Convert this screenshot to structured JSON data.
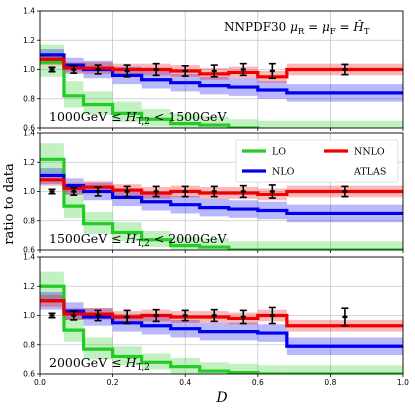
{
  "figure": {
    "ylabel": "ratio to data",
    "xlabel": "D",
    "annotation": "NNPDF30 μR = μF = ĤT"
  },
  "colors": {
    "LO": "#22cc22",
    "NLO": "#0000ee",
    "NNLO": "#ee0000",
    "ATLAS": "#000000"
  },
  "legend": {
    "entries": [
      {
        "label": "LO",
        "series": "LO"
      },
      {
        "label": "NNLO",
        "series": "NNLO"
      },
      {
        "label": "NLO",
        "series": "NLO"
      },
      {
        "label": "ATLAS",
        "series": "ATLAS"
      }
    ]
  },
  "chart_data": [
    {
      "type": "step",
      "range_label": "1000GeV ≤ HT,2 < 1500GeV",
      "xlim": [
        0.0,
        1.0
      ],
      "ylim": [
        0.6,
        1.4
      ],
      "yticks": [
        "0.6",
        "0.8",
        "1.0",
        "1.2",
        "1.4"
      ],
      "grid": true,
      "bin_edges": [
        0.0,
        0.066,
        0.12,
        0.2,
        0.28,
        0.36,
        0.44,
        0.52,
        0.6,
        0.68,
        1.0
      ],
      "series": [
        {
          "name": "LO",
          "values": [
            1.05,
            0.82,
            0.76,
            0.7,
            0.66,
            0.63,
            0.62,
            0.6,
            0.59,
            0.59
          ],
          "unc_low": [
            0.95,
            0.74,
            0.69,
            0.64,
            0.61,
            0.59,
            0.58,
            0.56,
            0.55,
            0.55
          ],
          "unc_high": [
            1.17,
            0.92,
            0.85,
            0.78,
            0.73,
            0.7,
            0.68,
            0.66,
            0.65,
            0.65
          ]
        },
        {
          "name": "NLO",
          "values": [
            1.1,
            1.03,
            1.0,
            0.96,
            0.93,
            0.91,
            0.89,
            0.88,
            0.86,
            0.84
          ],
          "unc_low": [
            1.04,
            0.97,
            0.94,
            0.9,
            0.87,
            0.85,
            0.83,
            0.82,
            0.8,
            0.78
          ],
          "unc_high": [
            1.14,
            1.08,
            1.06,
            1.02,
            0.99,
            0.97,
            0.95,
            0.94,
            0.92,
            0.9
          ]
        },
        {
          "name": "NNLO",
          "values": [
            1.07,
            1.01,
            1.01,
            1.0,
            1.0,
            0.99,
            0.97,
            0.98,
            0.95,
            1.0
          ],
          "unc_low": [
            1.03,
            0.98,
            0.97,
            0.96,
            0.96,
            0.95,
            0.93,
            0.94,
            0.91,
            0.96
          ],
          "unc_high": [
            1.1,
            1.05,
            1.05,
            1.04,
            1.04,
            1.03,
            1.01,
            1.02,
            0.99,
            1.04
          ]
        }
      ],
      "data": {
        "x": [
          0.033,
          0.093,
          0.16,
          0.24,
          0.32,
          0.4,
          0.48,
          0.56,
          0.64,
          0.84
        ],
        "y": [
          1.0,
          1.0,
          1.0,
          0.99,
          1.0,
          0.99,
          0.99,
          1.0,
          0.99,
          1.0
        ],
        "err": [
          0.015,
          0.025,
          0.03,
          0.04,
          0.04,
          0.035,
          0.04,
          0.04,
          0.05,
          0.035
        ]
      }
    },
    {
      "type": "step",
      "range_label": "1500GeV ≤ HT,2 < 2000GeV",
      "xlim": [
        0.0,
        1.0
      ],
      "ylim": [
        0.6,
        1.4
      ],
      "yticks": [
        "0.6",
        "0.8",
        "1.0",
        "1.2",
        "1.4"
      ],
      "grid": true,
      "bin_edges": [
        0.0,
        0.066,
        0.12,
        0.2,
        0.28,
        0.36,
        0.44,
        0.52,
        0.6,
        0.68,
        1.0
      ],
      "series": [
        {
          "name": "LO",
          "values": [
            1.22,
            0.9,
            0.78,
            0.72,
            0.67,
            0.63,
            0.62,
            0.6,
            0.6,
            0.6
          ],
          "unc_low": [
            1.12,
            0.82,
            0.71,
            0.66,
            0.62,
            0.59,
            0.58,
            0.56,
            0.56,
            0.56
          ],
          "unc_high": [
            1.33,
            0.99,
            0.86,
            0.79,
            0.73,
            0.69,
            0.68,
            0.66,
            0.66,
            0.66
          ]
        },
        {
          "name": "NLO",
          "values": [
            1.11,
            1.04,
            1.0,
            0.96,
            0.93,
            0.91,
            0.89,
            0.88,
            0.87,
            0.85
          ],
          "unc_low": [
            1.05,
            0.98,
            0.94,
            0.9,
            0.87,
            0.85,
            0.83,
            0.82,
            0.81,
            0.79
          ],
          "unc_high": [
            1.16,
            1.09,
            1.06,
            1.02,
            0.99,
            0.97,
            0.95,
            0.94,
            0.93,
            0.91
          ]
        },
        {
          "name": "NNLO",
          "values": [
            1.08,
            1.02,
            1.03,
            1.01,
            0.99,
            1.0,
            0.99,
            0.99,
            0.98,
            1.0
          ],
          "unc_low": [
            1.04,
            0.98,
            0.99,
            0.97,
            0.95,
            0.96,
            0.95,
            0.95,
            0.94,
            0.96
          ],
          "unc_high": [
            1.12,
            1.06,
            1.07,
            1.05,
            1.03,
            1.04,
            1.03,
            1.03,
            1.02,
            1.04
          ]
        }
      ],
      "data": {
        "x": [
          0.033,
          0.093,
          0.16,
          0.24,
          0.32,
          0.4,
          0.48,
          0.56,
          0.64,
          0.84
        ],
        "y": [
          1.0,
          1.0,
          1.0,
          1.0,
          1.0,
          1.0,
          1.0,
          1.0,
          1.0,
          1.0
        ],
        "err": [
          0.015,
          0.025,
          0.03,
          0.035,
          0.035,
          0.035,
          0.035,
          0.04,
          0.045,
          0.035
        ]
      }
    },
    {
      "type": "step",
      "range_label": "2000GeV ≤ HT,2",
      "xlim": [
        0.0,
        1.0
      ],
      "ylim": [
        0.6,
        1.4
      ],
      "yticks": [
        "0.6",
        "0.8",
        "1.0",
        "1.2",
        "1.4"
      ],
      "grid": true,
      "bin_edges": [
        0.0,
        0.066,
        0.12,
        0.2,
        0.28,
        0.36,
        0.44,
        0.52,
        0.6,
        0.68,
        1.0
      ],
      "series": [
        {
          "name": "LO",
          "values": [
            1.2,
            0.9,
            0.77,
            0.72,
            0.68,
            0.65,
            0.62,
            0.61,
            0.6,
            0.6
          ],
          "unc_low": [
            1.1,
            0.82,
            0.7,
            0.66,
            0.63,
            0.6,
            0.58,
            0.57,
            0.56,
            0.56
          ],
          "unc_high": [
            1.3,
            0.99,
            0.85,
            0.79,
            0.74,
            0.71,
            0.68,
            0.67,
            0.66,
            0.66
          ]
        },
        {
          "name": "NLO",
          "values": [
            1.1,
            1.03,
            0.99,
            0.95,
            0.93,
            0.91,
            0.89,
            0.89,
            0.88,
            0.79
          ],
          "unc_low": [
            1.04,
            0.97,
            0.93,
            0.89,
            0.87,
            0.85,
            0.83,
            0.83,
            0.82,
            0.73
          ],
          "unc_high": [
            1.16,
            1.09,
            1.05,
            1.01,
            0.99,
            0.97,
            0.95,
            0.95,
            0.94,
            0.85
          ]
        },
        {
          "name": "NNLO",
          "values": [
            1.1,
            1.01,
            1.01,
            0.99,
            1.0,
            0.99,
            0.99,
            0.98,
            1.0,
            0.93
          ],
          "unc_low": [
            1.06,
            0.97,
            0.97,
            0.95,
            0.96,
            0.95,
            0.95,
            0.94,
            0.96,
            0.89
          ],
          "unc_high": [
            1.14,
            1.05,
            1.05,
            1.03,
            1.04,
            1.03,
            1.03,
            1.02,
            1.04,
            0.97
          ]
        }
      ],
      "data": {
        "x": [
          0.033,
          0.093,
          0.16,
          0.24,
          0.32,
          0.4,
          0.48,
          0.56,
          0.64,
          0.84
        ],
        "y": [
          1.0,
          1.0,
          1.0,
          0.99,
          1.0,
          1.0,
          1.0,
          0.99,
          1.0,
          0.99
        ],
        "err": [
          0.015,
          0.03,
          0.035,
          0.045,
          0.04,
          0.035,
          0.04,
          0.045,
          0.055,
          0.06
        ]
      }
    }
  ]
}
